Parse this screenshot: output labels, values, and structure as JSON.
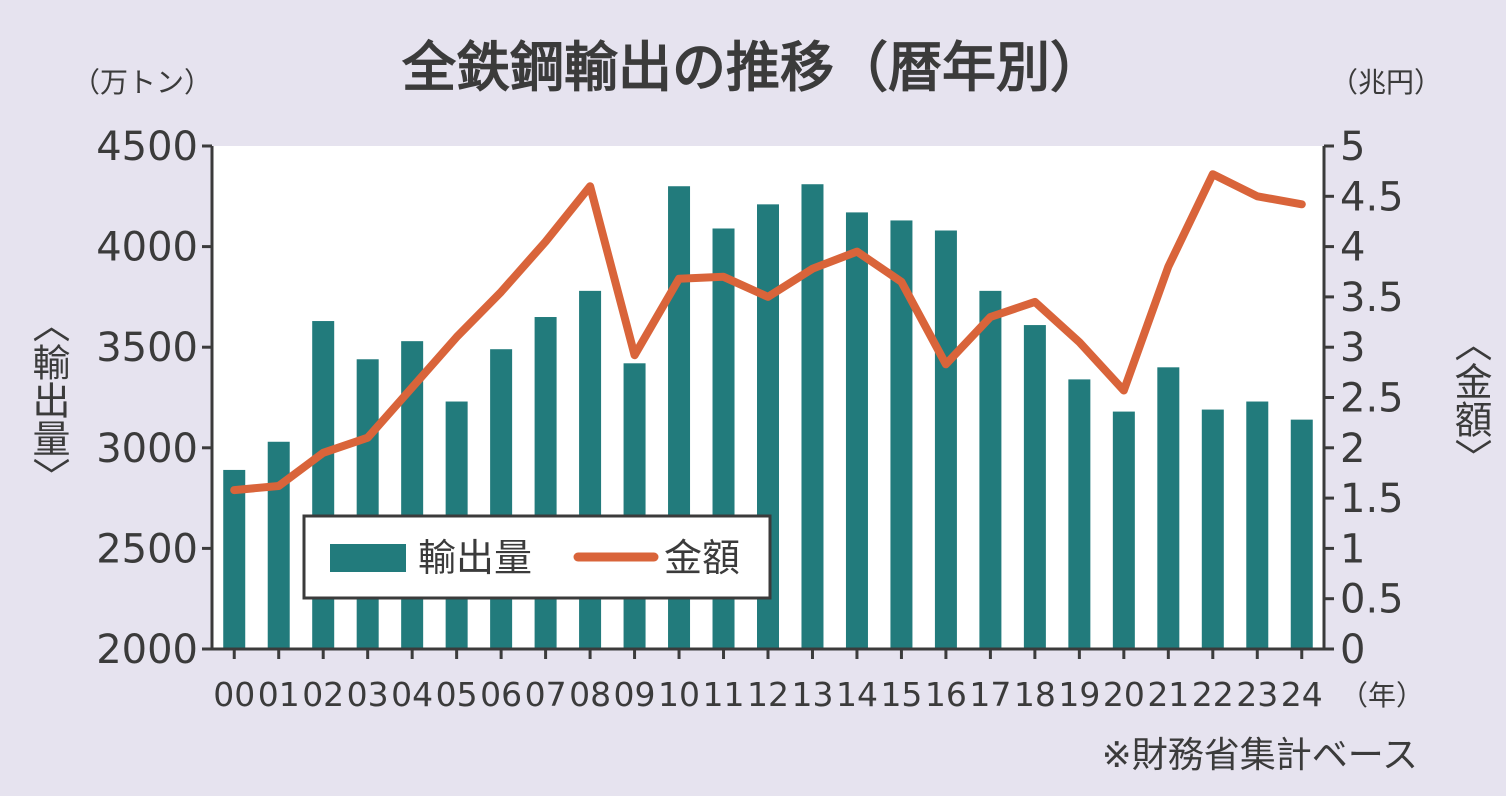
{
  "chart_data": {
    "type": "bar+line",
    "title": "全鉄鋼輸出の推移（暦年別）",
    "x_unit": "（年）",
    "categories": [
      "00",
      "01",
      "02",
      "03",
      "04",
      "05",
      "06",
      "07",
      "08",
      "09",
      "10",
      "11",
      "12",
      "13",
      "14",
      "15",
      "16",
      "17",
      "18",
      "19",
      "20",
      "21",
      "22",
      "23",
      "24"
    ],
    "series": [
      {
        "name": "輸出量",
        "kind": "bar",
        "axis": "left",
        "color": "#227b7c",
        "values": [
          2890,
          3030,
          3630,
          3440,
          3530,
          3230,
          3490,
          3650,
          3780,
          3420,
          4300,
          4090,
          4210,
          4310,
          4170,
          4130,
          4080,
          3780,
          3610,
          3340,
          3180,
          3400,
          3190,
          3230,
          3140
        ]
      },
      {
        "name": "金額",
        "kind": "line",
        "axis": "right",
        "color": "#d9643a",
        "values": [
          1.58,
          1.62,
          1.95,
          2.1,
          2.6,
          3.1,
          3.55,
          4.05,
          4.6,
          2.92,
          3.68,
          3.7,
          3.5,
          3.78,
          3.95,
          3.65,
          2.83,
          3.3,
          3.45,
          3.05,
          2.57,
          3.8,
          4.72,
          4.5,
          4.42
        ]
      }
    ],
    "y_left": {
      "label": "〈輸出量〉",
      "unit": "（万トン）",
      "range": [
        2000,
        4500
      ],
      "ticks": [
        "2000",
        "2500",
        "3000",
        "3500",
        "4000",
        "4500"
      ]
    },
    "y_right": {
      "label": "〈金額〉",
      "unit": "（兆円）",
      "range": [
        0,
        5
      ],
      "ticks": [
        "0",
        "0.5",
        "1",
        "1.5",
        "2",
        "2.5",
        "3",
        "3.5",
        "4",
        "4.5",
        "5"
      ]
    },
    "legend_position": "bottom-left-inside",
    "note": "※財務省集計ベース"
  }
}
